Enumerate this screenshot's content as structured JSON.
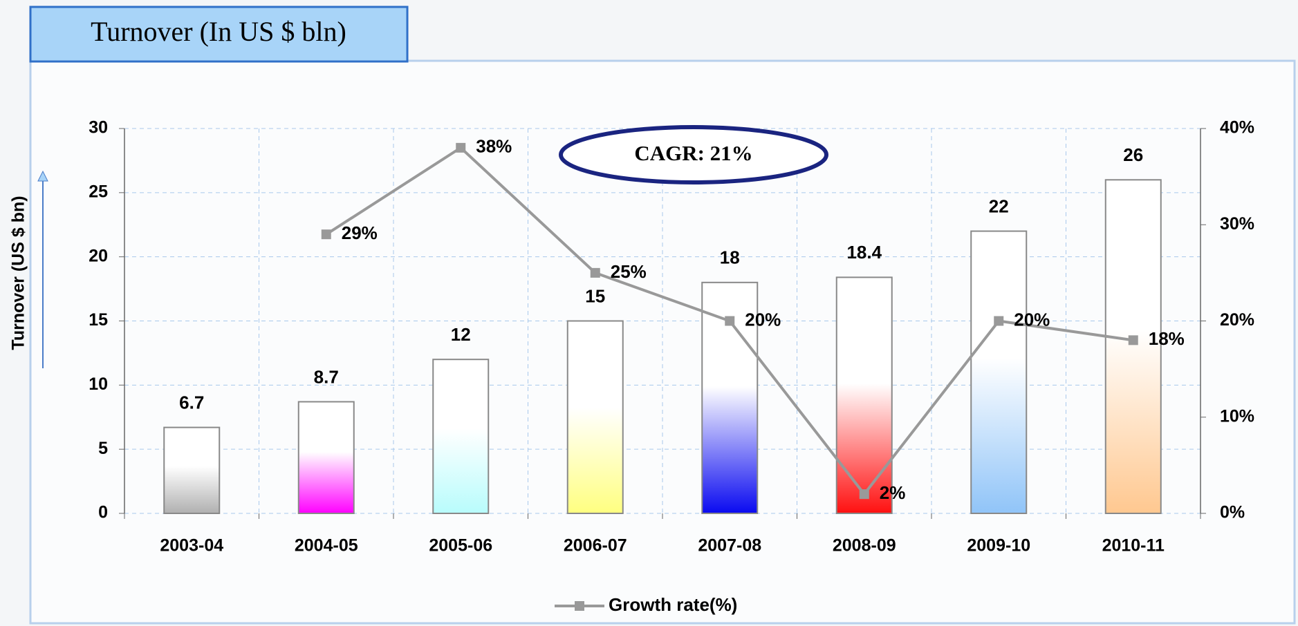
{
  "chart_data": {
    "type": "bar",
    "title": "Turnover (In US $ bln)",
    "y_label": "Turnover (US $ bn)",
    "annotation": "CAGR: 21%",
    "categories": [
      "2003-04",
      "2004-05",
      "2005-06",
      "2006-07",
      "2007-08",
      "2008-09",
      "2009-10",
      "2010-11"
    ],
    "values": [
      6.7,
      8.7,
      12,
      15,
      18,
      18.4,
      22,
      26
    ],
    "colors": [
      "#b0b0b0",
      "#ff00ff",
      "#b8fcfc",
      "#ffff80",
      "#0a0af0",
      "#ff1010",
      "#90c4f8",
      "#ffc890"
    ],
    "ylim": [
      0,
      30
    ],
    "yticks": [
      0,
      5,
      10,
      15,
      20,
      25,
      30
    ],
    "y2lim": [
      0,
      40
    ],
    "y2ticks": [
      {
        "value": 0,
        "label": "0%"
      },
      {
        "value": 10,
        "label": "10%"
      },
      {
        "value": 20,
        "label": "20%"
      },
      {
        "value": 30,
        "label": "30%"
      },
      {
        "value": 40,
        "label": "40%"
      }
    ],
    "grid": true,
    "legend": "bottom",
    "series": [
      {
        "name": "Growth rate(%)",
        "type": "line",
        "axis": "y2",
        "color": "#999999",
        "values": [
          null,
          29,
          38,
          25,
          20,
          2,
          20,
          18
        ],
        "value_labels": [
          null,
          "29%",
          "38%",
          "25%",
          "20%",
          "2%",
          "20%",
          "18%"
        ]
      }
    ]
  }
}
